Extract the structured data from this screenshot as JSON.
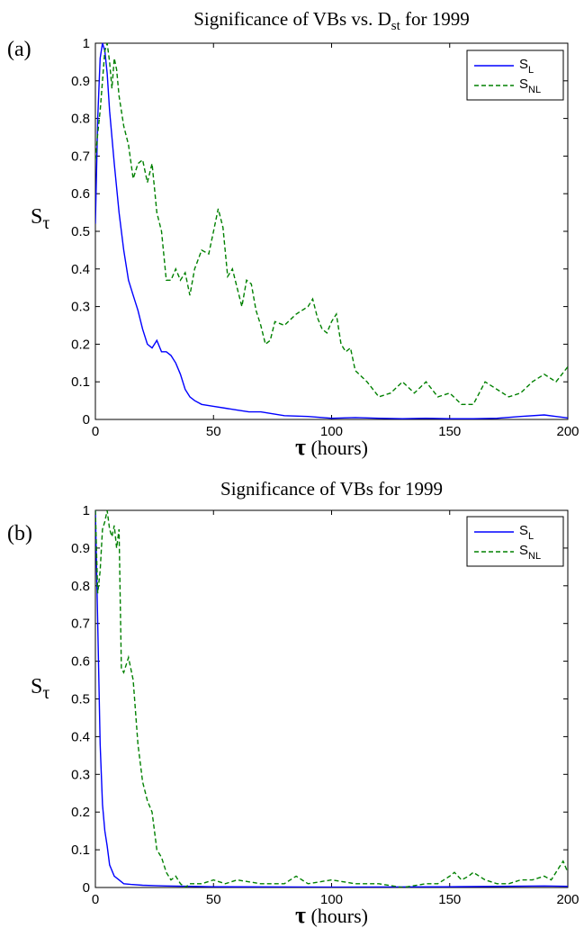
{
  "colors": {
    "S_L": "#0000ff",
    "S_NL": "#008000",
    "axis": "#000000"
  },
  "chart_data": [
    {
      "panel": "(a)",
      "type": "line",
      "title": {
        "main": "Significance of VBs vs. D",
        "sub": "st",
        "tail": " for 1999"
      },
      "xlabel": {
        "symbol": "τ",
        "rest": " (hours)"
      },
      "ylabel": {
        "main": "S",
        "sub": "τ"
      },
      "xlim": [
        0,
        200
      ],
      "ylim": [
        0,
        1
      ],
      "xticks": [
        0,
        50,
        100,
        150,
        200
      ],
      "yticks": [
        0,
        0.1,
        0.2,
        0.3,
        0.4,
        0.5,
        0.6,
        0.7,
        0.8,
        0.9,
        1
      ],
      "grid": false,
      "legend": {
        "placement": "top-right",
        "entries": [
          {
            "main": "S",
            "sub": "L"
          },
          {
            "main": "S",
            "sub": "NL"
          }
        ]
      },
      "series": [
        {
          "name": "S_L",
          "color": "#0000ff",
          "style": "solid",
          "x": [
            0,
            1,
            2,
            3,
            4,
            5,
            6,
            8,
            10,
            12,
            14,
            16,
            18,
            20,
            22,
            24,
            26,
            28,
            30,
            32,
            34,
            36,
            38,
            40,
            42,
            45,
            50,
            55,
            60,
            65,
            70,
            75,
            80,
            90,
            100,
            110,
            120,
            130,
            140,
            150,
            160,
            170,
            180,
            190,
            195,
            200
          ],
          "y": [
            0.52,
            0.8,
            0.96,
            1.0,
            0.98,
            0.92,
            0.82,
            0.68,
            0.55,
            0.45,
            0.37,
            0.33,
            0.29,
            0.24,
            0.2,
            0.19,
            0.21,
            0.18,
            0.18,
            0.17,
            0.15,
            0.12,
            0.08,
            0.06,
            0.05,
            0.04,
            0.035,
            0.03,
            0.025,
            0.02,
            0.02,
            0.015,
            0.01,
            0.008,
            0.003,
            0.005,
            0.003,
            0.002,
            0.003,
            0.002,
            0.002,
            0.003,
            0.008,
            0.012,
            0.008,
            0.004
          ]
        },
        {
          "name": "S_NL",
          "color": "#008000",
          "style": "dashed",
          "x": [
            0,
            1,
            2,
            3,
            4,
            5,
            6,
            7,
            8,
            9,
            10,
            12,
            14,
            16,
            18,
            20,
            22,
            24,
            26,
            28,
            30,
            32,
            34,
            36,
            38,
            40,
            42,
            45,
            48,
            50,
            52,
            54,
            56,
            58,
            60,
            62,
            64,
            66,
            68,
            70,
            72,
            74,
            76,
            80,
            85,
            90,
            92,
            94,
            96,
            98,
            100,
            102,
            104,
            106,
            108,
            110,
            115,
            120,
            125,
            130,
            135,
            140,
            145,
            150,
            155,
            160,
            165,
            170,
            175,
            180,
            185,
            190,
            195,
            200
          ],
          "y": [
            0.69,
            0.76,
            0.82,
            0.9,
            0.98,
            1.0,
            0.95,
            0.88,
            0.96,
            0.93,
            0.86,
            0.78,
            0.73,
            0.64,
            0.68,
            0.69,
            0.63,
            0.68,
            0.55,
            0.5,
            0.37,
            0.37,
            0.4,
            0.37,
            0.39,
            0.33,
            0.4,
            0.45,
            0.44,
            0.5,
            0.56,
            0.51,
            0.38,
            0.4,
            0.35,
            0.3,
            0.37,
            0.36,
            0.29,
            0.25,
            0.2,
            0.21,
            0.26,
            0.25,
            0.28,
            0.3,
            0.32,
            0.27,
            0.24,
            0.23,
            0.26,
            0.28,
            0.2,
            0.18,
            0.19,
            0.13,
            0.1,
            0.06,
            0.07,
            0.1,
            0.07,
            0.1,
            0.06,
            0.07,
            0.04,
            0.04,
            0.1,
            0.08,
            0.06,
            0.07,
            0.1,
            0.12,
            0.1,
            0.14
          ]
        }
      ]
    },
    {
      "panel": "(b)",
      "type": "line",
      "title": {
        "main": "Significance of VBs for 1999",
        "sub": "",
        "tail": ""
      },
      "xlabel": {
        "symbol": "τ",
        "rest": " (hours)"
      },
      "ylabel": {
        "main": "S",
        "sub": "τ"
      },
      "xlim": [
        0,
        200
      ],
      "ylim": [
        0,
        1
      ],
      "xticks": [
        0,
        50,
        100,
        150,
        200
      ],
      "yticks": [
        0,
        0.1,
        0.2,
        0.3,
        0.4,
        0.5,
        0.6,
        0.7,
        0.8,
        0.9,
        1
      ],
      "grid": false,
      "legend": {
        "placement": "top-right",
        "entries": [
          {
            "main": "S",
            "sub": "L"
          },
          {
            "main": "S",
            "sub": "NL"
          }
        ]
      },
      "series": [
        {
          "name": "S_L",
          "color": "#0000ff",
          "style": "solid",
          "x": [
            0,
            1,
            2,
            3,
            4,
            5,
            6,
            8,
            10,
            12,
            15,
            20,
            25,
            30,
            40,
            50,
            100,
            150,
            190,
            200
          ],
          "y": [
            1.0,
            0.7,
            0.38,
            0.22,
            0.15,
            0.11,
            0.06,
            0.03,
            0.02,
            0.01,
            0.008,
            0.006,
            0.005,
            0.004,
            0.003,
            0.002,
            0.001,
            0.002,
            0.004,
            0.003
          ]
        },
        {
          "name": "S_NL",
          "color": "#008000",
          "style": "dashed",
          "x": [
            0,
            1,
            2,
            3,
            4,
            5,
            6,
            7,
            8,
            9,
            10,
            11,
            12,
            14,
            16,
            18,
            20,
            22,
            24,
            26,
            28,
            30,
            32,
            34,
            36,
            38,
            40,
            45,
            50,
            55,
            60,
            70,
            80,
            85,
            90,
            100,
            110,
            120,
            130,
            140,
            145,
            150,
            152,
            155,
            158,
            160,
            165,
            170,
            175,
            180,
            185,
            190,
            193,
            196,
            198,
            200
          ],
          "y": [
            1.0,
            0.78,
            0.84,
            0.95,
            0.97,
            1.0,
            0.95,
            0.93,
            0.96,
            0.9,
            0.95,
            0.58,
            0.57,
            0.61,
            0.55,
            0.38,
            0.28,
            0.23,
            0.2,
            0.1,
            0.08,
            0.04,
            0.02,
            0.03,
            0.01,
            0.0,
            0.01,
            0.01,
            0.02,
            0.01,
            0.02,
            0.01,
            0.01,
            0.03,
            0.01,
            0.02,
            0.01,
            0.01,
            0.0,
            0.01,
            0.01,
            0.03,
            0.04,
            0.02,
            0.03,
            0.04,
            0.02,
            0.01,
            0.01,
            0.02,
            0.02,
            0.03,
            0.02,
            0.05,
            0.07,
            0.04
          ]
        }
      ]
    }
  ]
}
